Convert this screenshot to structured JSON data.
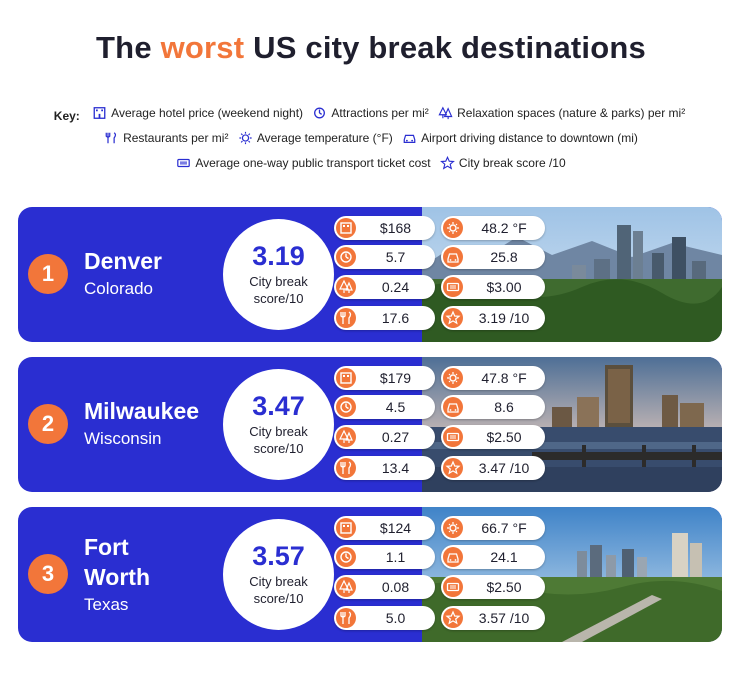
{
  "title": {
    "part1": "The",
    "highlight": "worst",
    "part2": "US city break destinations"
  },
  "key": {
    "label": "Key:",
    "items": [
      "Average hotel price (weekend night)",
      "Attractions per mi²",
      "Relaxation spaces (nature & parks) per mi²",
      "Restaurants per mi²",
      "Average temperature (°F)",
      "Airport driving distance to downtown (mi)",
      "Average one-way public transport ticket cost",
      "City break score /10"
    ]
  },
  "colors": {
    "accent": "#f2763a",
    "card": "#2a2ed1",
    "text": "#1f1f2e"
  },
  "score_label_line1": "City break",
  "score_label_line2": "score/10",
  "cities": [
    {
      "rank": "1",
      "name": "Denver",
      "state": "Colorado",
      "score": "3.19",
      "hotel": "$168",
      "attractions": "5.7",
      "relaxation": "0.24",
      "restaurants": "17.6",
      "temperature": "48.2 °F",
      "airport": "25.8",
      "transport": "$3.00",
      "score_text": "3.19 /10"
    },
    {
      "rank": "2",
      "name": "Milwaukee",
      "state": "Wisconsin",
      "score": "3.47",
      "hotel": "$179",
      "attractions": "4.5",
      "relaxation": "0.27",
      "restaurants": "13.4",
      "temperature": "47.8 °F",
      "airport": "8.6",
      "transport": "$2.50",
      "score_text": "3.47 /10"
    },
    {
      "rank": "3",
      "name_line1": "Fort",
      "name_line2": "Worth",
      "state": "Texas",
      "score": "3.57",
      "hotel": "$124",
      "attractions": "1.1",
      "relaxation": "0.08",
      "restaurants": "5.0",
      "temperature": "66.7 °F",
      "airport": "24.1",
      "transport": "$2.50",
      "score_text": "3.57 /10"
    }
  ]
}
